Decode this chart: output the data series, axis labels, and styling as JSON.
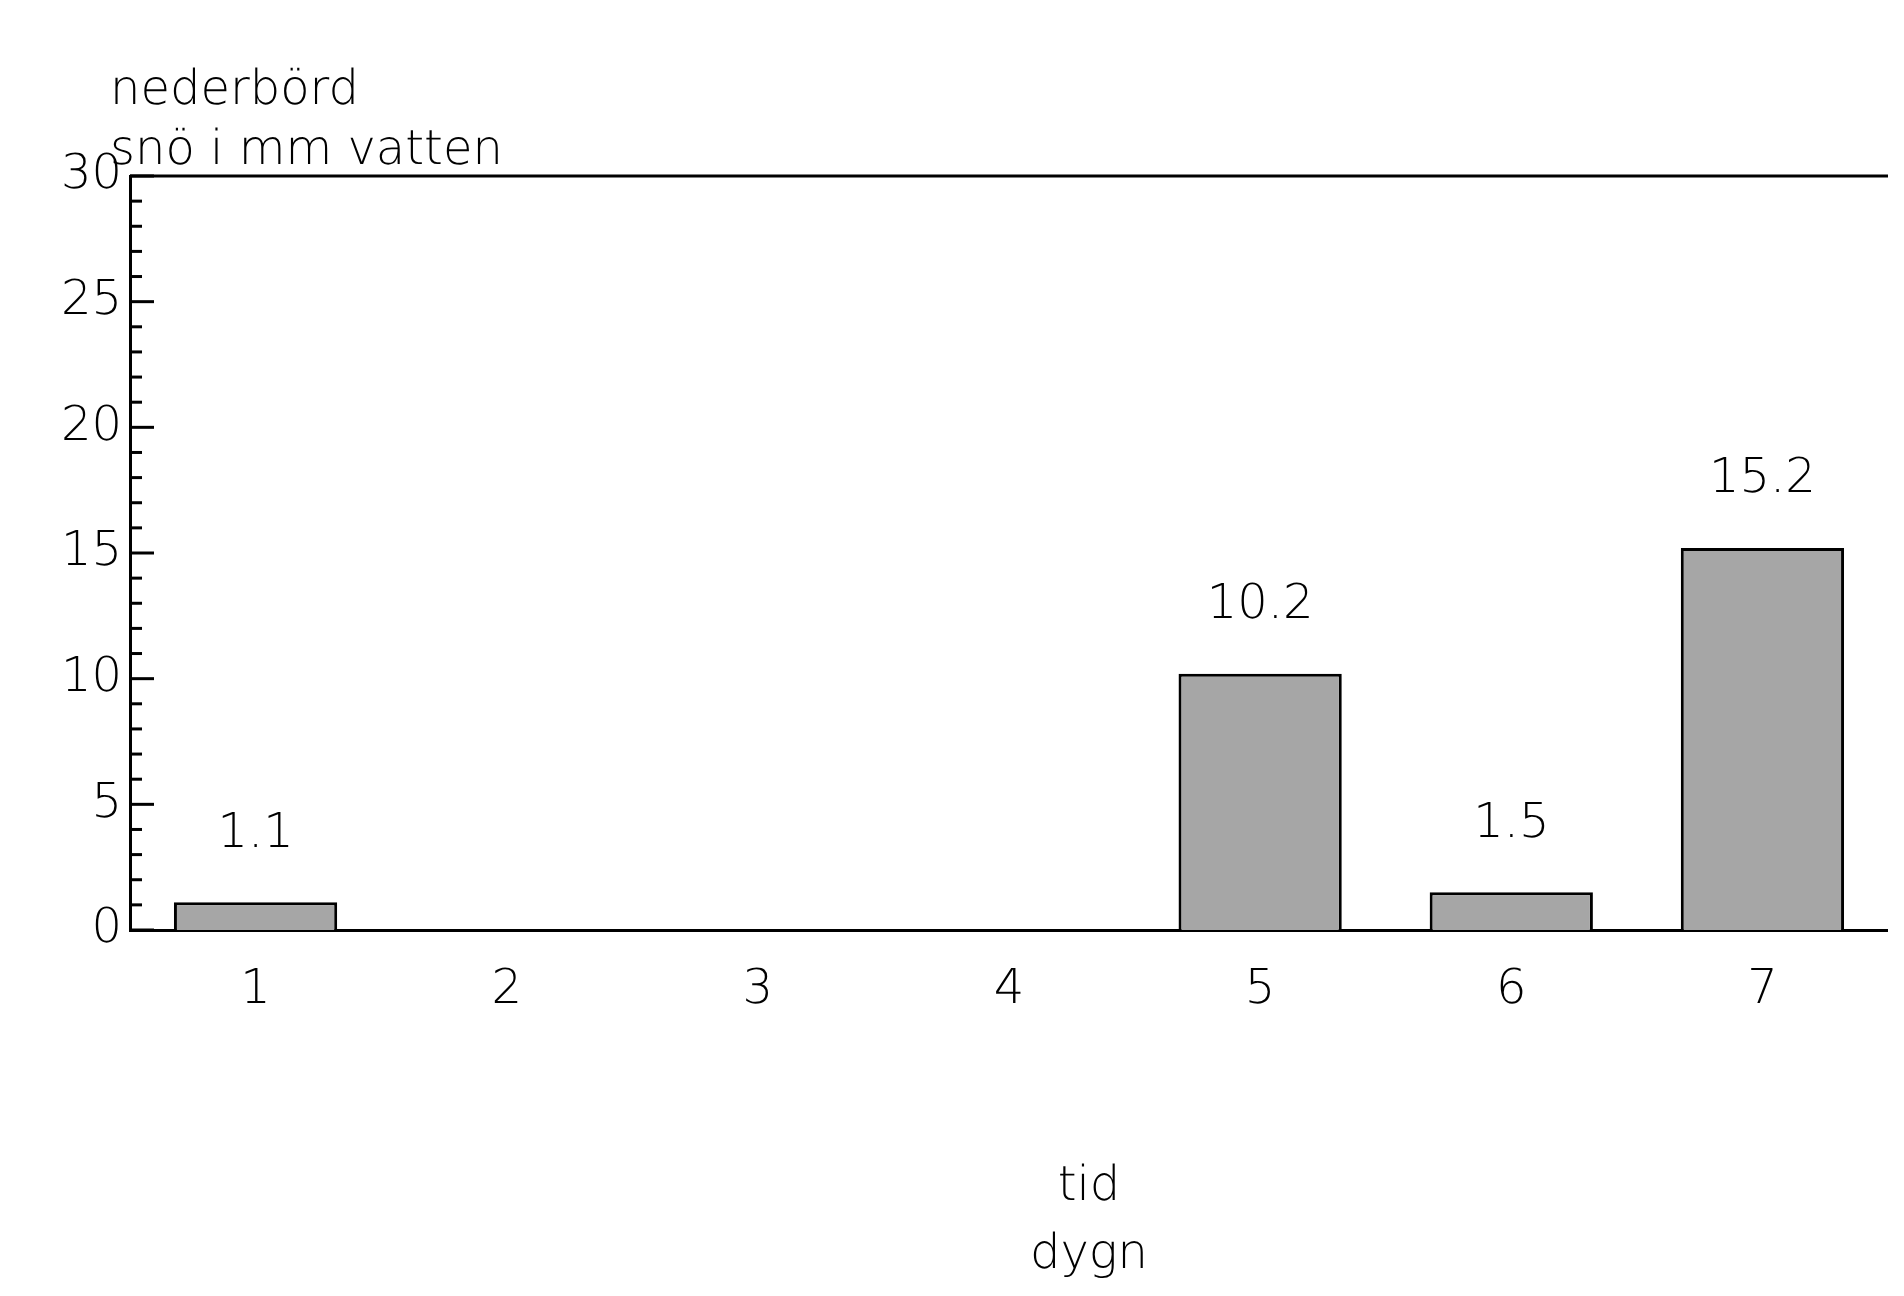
{
  "chart_data": {
    "type": "bar",
    "ylabel": "nederbörd\nsnö i mm vatten",
    "xlabel": "tid\ndygn",
    "categories": [
      "1",
      "2",
      "3",
      "4",
      "5",
      "6",
      "7"
    ],
    "values": [
      1.1,
      0,
      0,
      0,
      10.2,
      1.5,
      15.2
    ],
    "value_labels": [
      "1.1",
      null,
      null,
      null,
      "10.2",
      "1.5",
      "15.2"
    ],
    "color": "#a6a6a6",
    "ylim": [
      0,
      30
    ],
    "yticks": [
      0,
      {
        "value": 1,
        "label": null
      },
      {
        "value": 2,
        "label": null
      },
      {
        "value": 3,
        "label": null
      },
      {
        "value": 4,
        "label": null
      },
      5,
      {
        "value": 6,
        "label": null
      },
      {
        "value": 7,
        "label": null
      },
      {
        "value": 8,
        "label": null
      },
      {
        "value": 9,
        "label": null
      },
      10,
      {
        "value": 11,
        "label": null
      },
      {
        "value": 12,
        "label": null
      },
      {
        "value": 13,
        "label": null
      },
      {
        "value": 14,
        "label": null
      },
      15,
      {
        "value": 16,
        "label": null
      },
      {
        "value": 17,
        "label": null
      },
      {
        "value": 18,
        "label": null
      },
      {
        "value": 19,
        "label": null
      },
      20,
      {
        "value": 21,
        "label": null
      },
      {
        "value": 22,
        "label": null
      },
      {
        "value": 23,
        "label": null
      },
      {
        "value": 24,
        "label": null
      },
      25,
      {
        "value": 26,
        "label": null
      },
      {
        "value": 27,
        "label": null
      },
      {
        "value": 28,
        "label": null
      },
      {
        "value": 29,
        "label": null
      },
      30
    ],
    "grid": false,
    "legend": false
  }
}
